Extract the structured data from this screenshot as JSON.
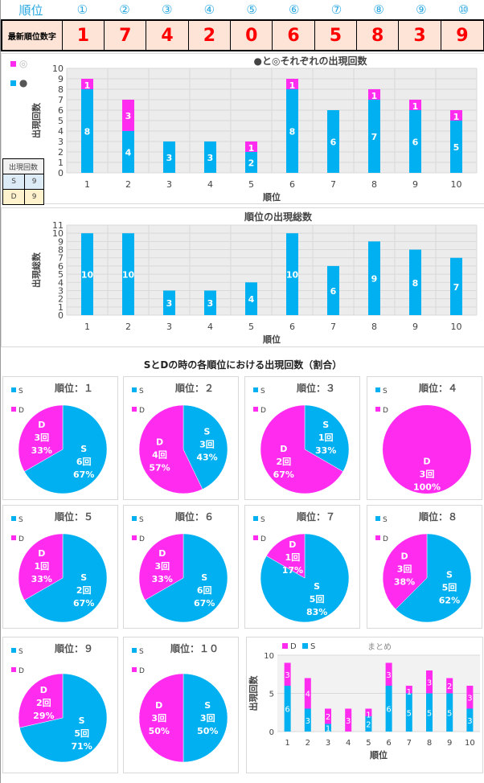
{
  "header": {
    "rank_label": "順位",
    "ranks": [
      "①",
      "②",
      "③",
      "④",
      "⑤",
      "⑥",
      "⑦",
      "⑧",
      "⑨",
      "⑩"
    ],
    "latest_label": "最新順位数字",
    "latest_digits": [
      "1",
      "7",
      "4",
      "2",
      "0",
      "6",
      "5",
      "8",
      "3",
      "9"
    ]
  },
  "legend_left": [
    {
      "symbol": "◎",
      "color": "#ff2cf0"
    },
    {
      "symbol": "●",
      "color": "#00b0f0"
    }
  ],
  "count_table": {
    "title": "出現回数",
    "rows": [
      {
        "k": "S",
        "v": "9"
      },
      {
        "k": "D",
        "v": "9"
      }
    ]
  },
  "colors": {
    "cyan": "#00b0f0",
    "magenta": "#ff2cf0"
  },
  "pie_section_title": "SとDの時の各順位における出現回数（割合）",
  "chart_data": [
    {
      "type": "bar",
      "stacked": true,
      "title": "●と◎それぞれの出現回数",
      "xlabel": "順位",
      "ylabel": "出現回数",
      "ylim": [
        0,
        10
      ],
      "categories": [
        "1",
        "2",
        "3",
        "4",
        "5",
        "6",
        "7",
        "8",
        "9",
        "10"
      ],
      "series": [
        {
          "name": "●",
          "values": [
            8,
            4,
            3,
            3,
            2,
            8,
            6,
            7,
            6,
            5
          ]
        },
        {
          "name": "◎",
          "values": [
            1,
            3,
            0,
            0,
            1,
            1,
            0,
            1,
            1,
            1
          ]
        }
      ],
      "grid": true
    },
    {
      "type": "bar",
      "title": "順位の出現総数",
      "xlabel": "順位",
      "ylabel": "出現総数",
      "ylim": [
        0,
        11
      ],
      "categories": [
        "1",
        "2",
        "3",
        "4",
        "5",
        "6",
        "7",
        "8",
        "9",
        "10"
      ],
      "series": [
        {
          "values": [
            10,
            10,
            3,
            3,
            4,
            10,
            6,
            9,
            8,
            7
          ]
        }
      ],
      "grid": true
    },
    {
      "type": "pie",
      "titles": [
        "順位：１",
        "順位：２",
        "順位：３",
        "順位：４",
        "順位：５",
        "順位：６",
        "順位：７",
        "順位：８",
        "順位：９",
        "順位：１０"
      ],
      "legend": [
        "S",
        "D"
      ],
      "count_suffix": "回",
      "S": [
        6,
        3,
        1,
        0,
        2,
        6,
        5,
        5,
        5,
        3
      ],
      "D": [
        3,
        4,
        2,
        3,
        1,
        3,
        1,
        3,
        2,
        3
      ],
      "S_pct": [
        "67%",
        "43%",
        "33%",
        "0%",
        "67%",
        "67%",
        "83%",
        "62%",
        "71%",
        "50%"
      ],
      "D_pct": [
        "33%",
        "57%",
        "67%",
        "100%",
        "33%",
        "33%",
        "17%",
        "38%",
        "29%",
        "50%"
      ]
    },
    {
      "type": "bar",
      "stacked": true,
      "title": "まとめ",
      "xlabel": "順位",
      "ylabel": "出現回数",
      "ylim": [
        0,
        10
      ],
      "categories": [
        "1",
        "2",
        "3",
        "4",
        "5",
        "6",
        "7",
        "8",
        "9",
        "10"
      ],
      "series": [
        {
          "name": "S",
          "values": [
            6,
            3,
            1,
            0,
            2,
            6,
            5,
            5,
            5,
            3
          ]
        },
        {
          "name": "D",
          "values": [
            3,
            4,
            2,
            3,
            1,
            3,
            1,
            3,
            2,
            3
          ]
        }
      ],
      "legend": "top-left"
    }
  ]
}
